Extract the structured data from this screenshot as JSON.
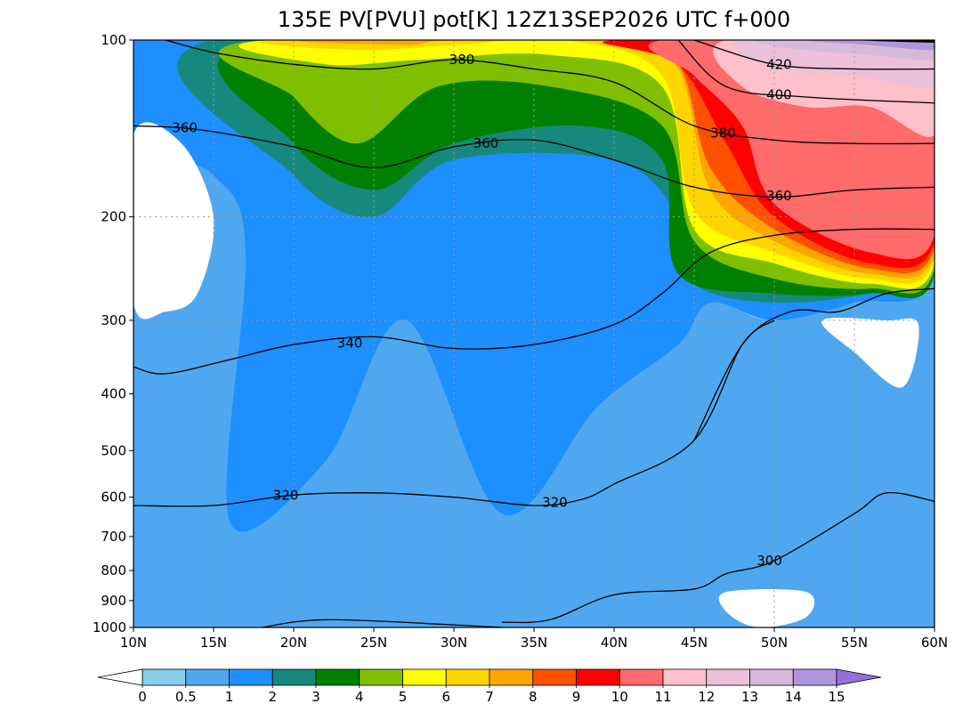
{
  "chart_data": {
    "type": "heatmap",
    "title": "135E PV[PVU] pot[K] 12Z13SEP2026 UTC f+000",
    "x_axis": {
      "range": [
        10,
        60
      ],
      "ticks": [
        10,
        15,
        20,
        25,
        30,
        35,
        40,
        45,
        50,
        55,
        60
      ],
      "tick_labels": [
        "10N",
        "15N",
        "20N",
        "25N",
        "30N",
        "35N",
        "40N",
        "45N",
        "50N",
        "55N",
        "60N"
      ]
    },
    "y_axis": {
      "scale": "log",
      "reversed": true,
      "range": [
        1000,
        100
      ],
      "ticks": [
        100,
        200,
        300,
        400,
        500,
        600,
        700,
        800,
        900,
        1000
      ],
      "tick_labels": [
        "100",
        "200",
        "300",
        "400",
        "500",
        "600",
        "700",
        "800",
        "900",
        "1000"
      ]
    },
    "grid": "dotted at 15N, 20N, 25N, 30N, 35N, 40N, 45N, 50N, 55N and 200, 300 hPa",
    "filled_variable": "PV [PVU]",
    "contour_variable": "pot [K]",
    "colorbar": {
      "orientation": "horizontal",
      "position": "bottom",
      "extend": "both",
      "levels": [
        0,
        0.5,
        1,
        2,
        3,
        4,
        5,
        6,
        7,
        8,
        9,
        10,
        11,
        12,
        13,
        14,
        15
      ],
      "level_labels": [
        "0",
        "0.5",
        "1",
        "2",
        "3",
        "4",
        "5",
        "6",
        "7",
        "8",
        "9",
        "10",
        "11",
        "12",
        "13",
        "14",
        "15"
      ],
      "under_color": "#ffffff",
      "over_color": "#9370db",
      "colors": [
        "#87ceeb",
        "#4fa8ef",
        "#1e8fff",
        "#16897e",
        "#008000",
        "#7fbf00",
        "#ffff00",
        "#ffd500",
        "#ffa500",
        "#ff5000",
        "#ff0000",
        "#ff6a6a",
        "#ffc0cb",
        "#ebc0d8",
        "#d6bada",
        "#b195dd"
      ]
    },
    "pv_regions": [
      {
        "level": 0.5,
        "points": [
          [
            10,
            1000
          ],
          [
            60,
            1000
          ],
          [
            60,
            250
          ],
          [
            50,
            300
          ],
          [
            46,
            250
          ],
          [
            45,
            200
          ],
          [
            44,
            120
          ],
          [
            40,
            100
          ],
          [
            10,
            100
          ]
        ]
      },
      {
        "level": 1,
        "points": [
          [
            16,
            660
          ],
          [
            22,
            520
          ],
          [
            27,
            300
          ],
          [
            33,
            640
          ],
          [
            39,
            420
          ],
          [
            44,
            330
          ],
          [
            46,
            280
          ],
          [
            50,
            300
          ],
          [
            55,
            280
          ],
          [
            60,
            250
          ],
          [
            60,
            100
          ],
          [
            10,
            100
          ],
          [
            10,
            145
          ],
          [
            15,
            170
          ],
          [
            17,
            230
          ]
        ]
      },
      {
        "level": 2,
        "points": [
          [
            15,
            100
          ],
          [
            20,
            170
          ],
          [
            25,
            200
          ],
          [
            30,
            160
          ],
          [
            40,
            160
          ],
          [
            44,
            200
          ],
          [
            45,
            260
          ],
          [
            50,
            280
          ],
          [
            56,
            270
          ],
          [
            60,
            250
          ],
          [
            60,
            100
          ]
        ]
      },
      {
        "level": 3,
        "points": [
          [
            18,
            100
          ],
          [
            20,
            150
          ],
          [
            25,
            180
          ],
          [
            30,
            150
          ],
          [
            38,
            140
          ],
          [
            43,
            160
          ],
          [
            44,
            250
          ],
          [
            50,
            270
          ],
          [
            56,
            270
          ],
          [
            60,
            250
          ],
          [
            60,
            100
          ]
        ]
      },
      {
        "level": 4,
        "points": [
          [
            18,
            100
          ],
          [
            20,
            125
          ],
          [
            24,
            150
          ],
          [
            29,
            120
          ],
          [
            36,
            120
          ],
          [
            43,
            140
          ],
          [
            45,
            220
          ],
          [
            50,
            255
          ],
          [
            56,
            265
          ],
          [
            60,
            245
          ],
          [
            60,
            100
          ]
        ]
      },
      {
        "level": 5,
        "points": [
          [
            19,
            100
          ],
          [
            22,
            110
          ],
          [
            28,
            108
          ],
          [
            36,
            106
          ],
          [
            43,
            120
          ],
          [
            45,
            210
          ],
          [
            50,
            240
          ],
          [
            56,
            260
          ],
          [
            60,
            240
          ],
          [
            60,
            100
          ]
        ]
      },
      {
        "level": 6,
        "points": [
          [
            20,
            100
          ],
          [
            24,
            104
          ],
          [
            30,
            102
          ],
          [
            37,
            100
          ],
          [
            43,
            115
          ],
          [
            45,
            195
          ],
          [
            50,
            230
          ],
          [
            56,
            255
          ],
          [
            60,
            235
          ],
          [
            60,
            100
          ]
        ]
      },
      {
        "level": 7,
        "points": [
          [
            22,
            100
          ],
          [
            27,
            102
          ],
          [
            30,
            100
          ],
          [
            40,
            100
          ],
          [
            44,
            112
          ],
          [
            46,
            180
          ],
          [
            50,
            220
          ],
          [
            56,
            250
          ],
          [
            60,
            230
          ],
          [
            60,
            100
          ]
        ]
      },
      {
        "level": 8,
        "points": [
          [
            36,
            100
          ],
          [
            40,
            100
          ],
          [
            44,
            110
          ],
          [
            46,
            165
          ],
          [
            50,
            210
          ],
          [
            56,
            245
          ],
          [
            60,
            225
          ],
          [
            60,
            100
          ]
        ]
      },
      {
        "level": 9,
        "points": [
          [
            40,
            100
          ],
          [
            44,
            110
          ],
          [
            47,
            150
          ],
          [
            50,
            200
          ],
          [
            56,
            240
          ],
          [
            60,
            220
          ],
          [
            60,
            100
          ]
        ]
      },
      {
        "level": 10,
        "points": [
          [
            43,
            100
          ],
          [
            45,
            115
          ],
          [
            48,
            140
          ],
          [
            50,
            190
          ],
          [
            56,
            230
          ],
          [
            60,
            215
          ],
          [
            60,
            100
          ]
        ]
      },
      {
        "level": 11,
        "points": [
          [
            47,
            100
          ],
          [
            48,
            120
          ],
          [
            52,
            130
          ],
          [
            56,
            130
          ],
          [
            60,
            145
          ],
          [
            60,
            100
          ]
        ]
      },
      {
        "level": 12,
        "points": [
          [
            48,
            100
          ],
          [
            50,
            112
          ],
          [
            55,
            115
          ],
          [
            60,
            120
          ],
          [
            60,
            100
          ]
        ]
      },
      {
        "level": 13,
        "points": [
          [
            49,
            100
          ],
          [
            52,
            104
          ],
          [
            56,
            106
          ],
          [
            60,
            108
          ],
          [
            60,
            100
          ]
        ]
      },
      {
        "level": 14,
        "points": [
          [
            52,
            100
          ],
          [
            60,
            100
          ],
          [
            60,
            104
          ],
          [
            56,
            102
          ]
        ]
      },
      {
        "level": 15,
        "points": [
          [
            55,
            100
          ],
          [
            60,
            100
          ],
          [
            60,
            101
          ]
        ]
      }
    ],
    "under_regions": [
      {
        "points": [
          [
            10,
            145
          ],
          [
            13,
            150
          ],
          [
            15,
            200
          ],
          [
            14,
            270
          ],
          [
            12,
            290
          ],
          [
            10,
            280
          ]
        ]
      },
      {
        "points": [
          [
            53,
            300
          ],
          [
            57,
            300
          ],
          [
            59,
            305
          ],
          [
            58,
            390
          ],
          [
            55,
            340
          ]
        ]
      },
      {
        "points": [
          [
            47,
            870
          ],
          [
            52,
            870
          ],
          [
            52,
            960
          ],
          [
            49,
            1000
          ],
          [
            47,
            940
          ]
        ]
      }
    ],
    "theta_contours": [
      {
        "value": 420,
        "label": "420",
        "points": [
          [
            45,
            100
          ],
          [
            50,
            110
          ],
          [
            55,
            112
          ],
          [
            60,
            112
          ]
        ],
        "label_at": [
          50.3,
          110
        ]
      },
      {
        "value": 400,
        "label": "400",
        "points": [
          [
            44,
            100
          ],
          [
            47,
            120
          ],
          [
            52,
            125
          ],
          [
            60,
            128
          ]
        ],
        "label_at": [
          50.3,
          124
        ]
      },
      {
        "value": 380,
        "label": "380",
        "points": [
          [
            12,
            100
          ],
          [
            15,
            105
          ],
          [
            20,
            110
          ],
          [
            25,
            112
          ],
          [
            30,
            108
          ],
          [
            35,
            112
          ],
          [
            40,
            118
          ],
          [
            45,
            140
          ],
          [
            50,
            148
          ],
          [
            55,
            150
          ],
          [
            60,
            150
          ]
        ],
        "label_at": [
          30.5,
          108
        ],
        "label_at_2": [
          46.8,
          144
        ]
      },
      {
        "value": 360,
        "label": "360",
        "points": [
          [
            10,
            140
          ],
          [
            14,
            142
          ],
          [
            20,
            152
          ],
          [
            25,
            165
          ],
          [
            30,
            152
          ],
          [
            35,
            148
          ],
          [
            40,
            160
          ],
          [
            45,
            178
          ],
          [
            50,
            185
          ],
          [
            55,
            180
          ],
          [
            60,
            178
          ]
        ],
        "label_at": [
          13.2,
          141
        ],
        "label_at_2": [
          32,
          150
        ],
        "label_at_3": [
          50.3,
          184
        ]
      },
      {
        "value": 340,
        "label": "340",
        "points": [
          [
            10,
            360
          ],
          [
            12,
            370
          ],
          [
            16,
            350
          ],
          [
            20,
            330
          ],
          [
            25,
            320
          ],
          [
            30,
            335
          ],
          [
            35,
            330
          ],
          [
            40,
            305
          ],
          [
            43,
            270
          ],
          [
            46,
            230
          ],
          [
            50,
            215
          ],
          [
            55,
            210
          ],
          [
            60,
            210
          ]
        ],
        "label_at": [
          23.5,
          328
        ]
      },
      {
        "value": 330,
        "label": "",
        "points": [
          [
            45,
            480
          ],
          [
            48,
            330
          ],
          [
            51,
            290
          ],
          [
            54,
            290
          ],
          [
            57,
            270
          ],
          [
            60,
            265
          ]
        ]
      },
      {
        "value": 320,
        "label": "320",
        "points": [
          [
            10,
            620
          ],
          [
            15,
            620
          ],
          [
            20,
            595
          ],
          [
            25,
            590
          ],
          [
            30,
            600
          ],
          [
            35,
            620
          ],
          [
            38,
            605
          ],
          [
            40,
            570
          ],
          [
            45,
            480
          ],
          [
            48,
            330
          ],
          [
            50,
            300
          ]
        ],
        "label_at": [
          19.5,
          596
        ],
        "label_at_2": [
          36.3,
          612
        ]
      },
      {
        "value": 300,
        "label": "300",
        "points": [
          [
            33,
            980
          ],
          [
            36,
            970
          ],
          [
            40,
            880
          ],
          [
            45,
            860
          ],
          [
            47,
            810
          ],
          [
            50,
            770
          ],
          [
            55,
            640
          ],
          [
            57,
            590
          ],
          [
            60,
            610
          ]
        ],
        "label_at": [
          49.7,
          770
        ]
      },
      {
        "value": 290,
        "label": "",
        "points": [
          [
            18,
            1000
          ],
          [
            22,
            970
          ],
          [
            30,
            990
          ],
          [
            33,
            1000
          ]
        ]
      }
    ]
  }
}
